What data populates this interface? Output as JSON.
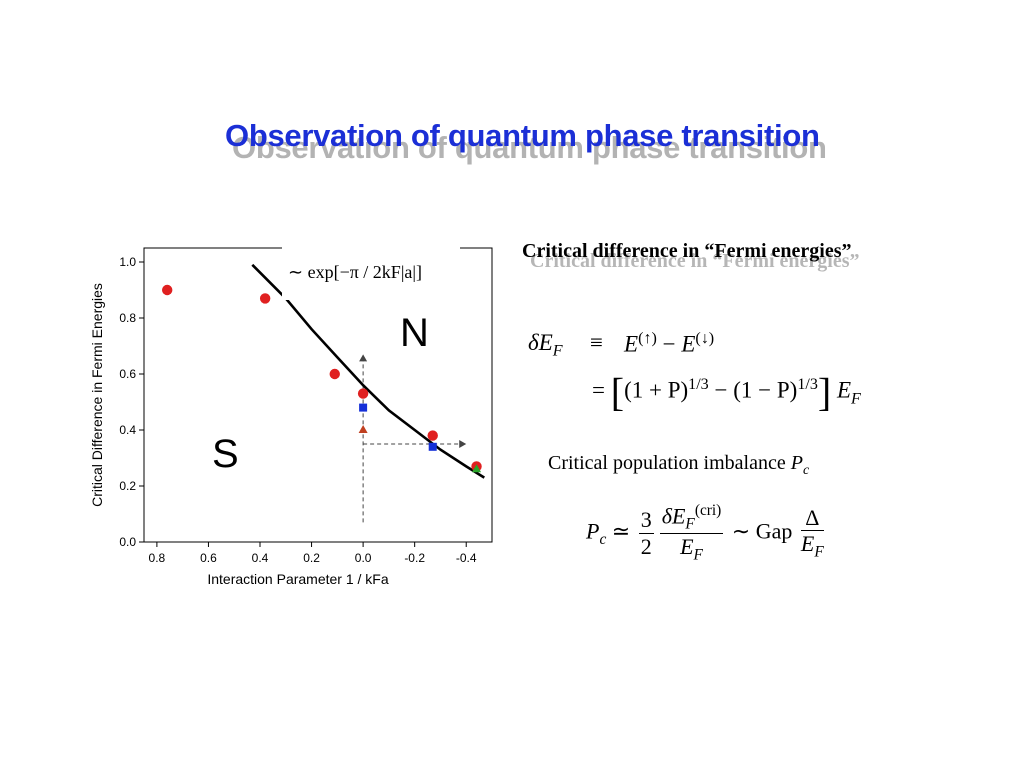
{
  "slide": {
    "title": "Observation of quantum phase transition",
    "subtitle": "Critical difference in “Fermi energies”",
    "pc_label_text": "Critical population imbalance ",
    "pc_label_symbol": "P",
    "pc_label_sub": "c"
  },
  "equations": {
    "delta_ef_lhs": "δE",
    "delta_ef_sub": "F",
    "equiv": "≡",
    "e_up": "E",
    "up_sup": "(↑)",
    "minus": "−",
    "e_down": "E",
    "down_sup": "(↓)",
    "equals": "=",
    "bracket_open": "[",
    "term1": "(1 + P)",
    "exp_third": "1/3",
    "term2": "(1 − P)",
    "bracket_close": "]",
    "ef": "E",
    "pc_lhs": "P",
    "pc_sub": "c",
    "simeq": "≃",
    "three": "3",
    "two": "2",
    "cri_sup": "(cri)",
    "sim": "∼",
    "gap": "Gap",
    "delta": "Δ"
  },
  "chart_data": {
    "type": "scatter",
    "title": "",
    "xlabel": "Interaction Parameter 1 / kFa",
    "ylabel": "Critical Difference in Fermi Energies",
    "xlim": [
      0.85,
      -0.5
    ],
    "ylim": [
      0.0,
      1.05
    ],
    "x_reversed": true,
    "xticks": [
      "0.8",
      "0.6",
      "0.4",
      "0.2",
      "0.0",
      "-0.2",
      "-0.4"
    ],
    "xtick_values": [
      0.8,
      0.6,
      0.4,
      0.2,
      0.0,
      -0.2,
      -0.4
    ],
    "yticks": [
      "0.0",
      "0.2",
      "0.4",
      "0.6",
      "0.8",
      "1.0"
    ],
    "ytick_values": [
      0.0,
      0.2,
      0.4,
      0.6,
      0.8,
      1.0
    ],
    "region_labels": {
      "superfluid": "S",
      "normal": "N"
    },
    "curve_formula": "∼ exp[−π / 2kF|a|]",
    "colors": {
      "red": "#e02020",
      "blue": "#1530d8",
      "green": "#2aa52a",
      "curve": "#000000"
    },
    "series": [
      {
        "values": [
          [
            0.76,
            0.9
          ],
          [
            0.38,
            0.87
          ],
          [
            0.11,
            0.6
          ],
          [
            0.0,
            0.53
          ],
          [
            -0.27,
            0.38
          ],
          [
            -0.44,
            0.27
          ]
        ],
        "marker": "circle",
        "color": "#e02020"
      },
      {
        "values": [
          [
            0.0,
            0.48
          ],
          [
            -0.27,
            0.34
          ]
        ],
        "marker": "square",
        "color": "#1530d8"
      },
      {
        "values": [
          [
            -0.44,
            0.26
          ]
        ],
        "marker": "triangle",
        "color": "#2aa52a"
      },
      {
        "values": [
          [
            0.0,
            0.4
          ]
        ],
        "marker": "triangle",
        "color": "#c04020"
      }
    ],
    "curve": [
      [
        0.43,
        0.99
      ],
      [
        0.3,
        0.87
      ],
      [
        0.2,
        0.76
      ],
      [
        0.1,
        0.66
      ],
      [
        0.0,
        0.56
      ],
      [
        -0.1,
        0.47
      ],
      [
        -0.2,
        0.4
      ],
      [
        -0.3,
        0.33
      ],
      [
        -0.4,
        0.27
      ],
      [
        -0.47,
        0.23
      ]
    ]
  }
}
